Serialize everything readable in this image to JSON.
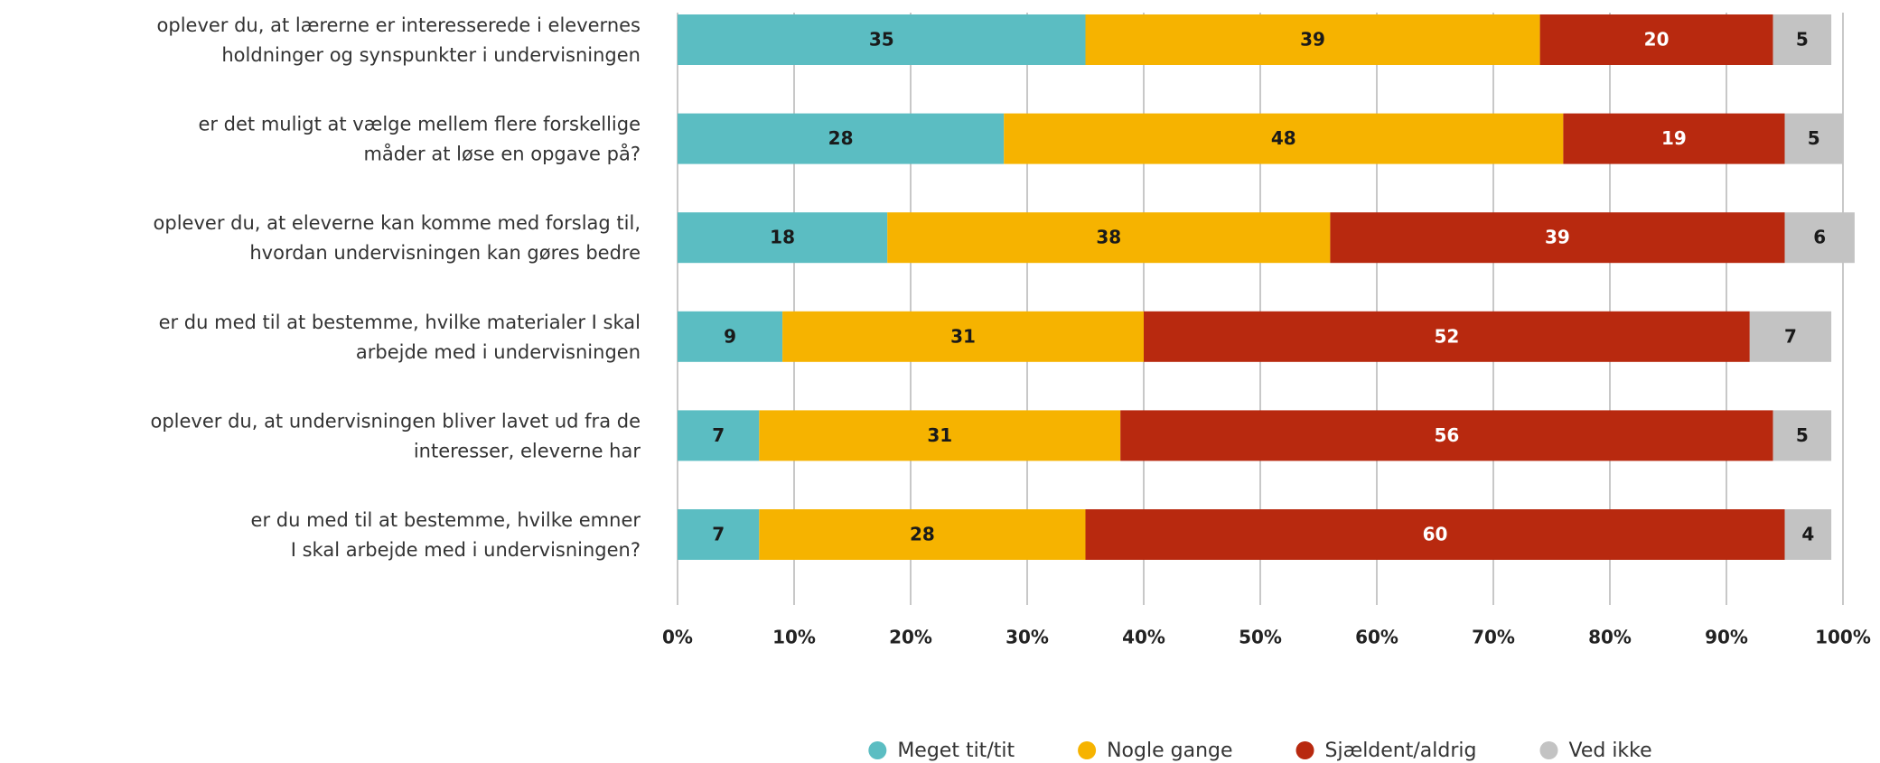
{
  "chart_data": {
    "type": "stacked-barh",
    "categories": [
      [
        "oplever du, at lærerne er interesserede i elevernes",
        "holdninger og synspunkter i undervisningen"
      ],
      [
        "er det muligt at vælge mellem flere forskellige",
        "måder at løse en opgave på?"
      ],
      [
        "oplever du, at eleverne kan komme med forslag til,",
        "hvordan undervisningen kan gøres bedre"
      ],
      [
        "er du med til at bestemme, hvilke materialer I skal",
        "arbejde med i undervisningen"
      ],
      [
        "oplever du, at undervisningen bliver lavet ud fra de",
        "interesser, eleverne har"
      ],
      [
        "er du med til at bestemme, hvilke emner",
        "I skal arbejde med i undervisningen?"
      ]
    ],
    "series": [
      {
        "name": "Meget tit/tit",
        "color": "#5bbdc2",
        "label_color": "#1a1a1a",
        "values": [
          35,
          28,
          18,
          9,
          7,
          7
        ]
      },
      {
        "name": "Nogle gange",
        "color": "#f6b300",
        "label_color": "#1a1a1a",
        "values": [
          39,
          48,
          38,
          31,
          31,
          28
        ]
      },
      {
        "name": "Sjældent/aldrig",
        "color": "#b8290f",
        "label_color": "#ffffff",
        "values": [
          20,
          19,
          39,
          52,
          56,
          60
        ]
      },
      {
        "name": "Ved ikke",
        "color": "#c3c3c3",
        "label_color": "#1a1a1a",
        "values": [
          5,
          5,
          6,
          7,
          5,
          4
        ]
      }
    ],
    "xlim": [
      0,
      100
    ],
    "xticks": [
      {
        "value": 0,
        "label": "0%"
      },
      {
        "value": 10,
        "label": "10%"
      },
      {
        "value": 20,
        "label": "20%"
      },
      {
        "value": 30,
        "label": "30%"
      },
      {
        "value": 40,
        "label": "40%"
      },
      {
        "value": 50,
        "label": "50%"
      },
      {
        "value": 60,
        "label": "60%"
      },
      {
        "value": 70,
        "label": "70%"
      },
      {
        "value": 80,
        "label": "80%"
      },
      {
        "value": 90,
        "label": "90%"
      },
      {
        "value": 100,
        "label": "100%"
      }
    ],
    "grid": true,
    "legend": "bottom"
  }
}
